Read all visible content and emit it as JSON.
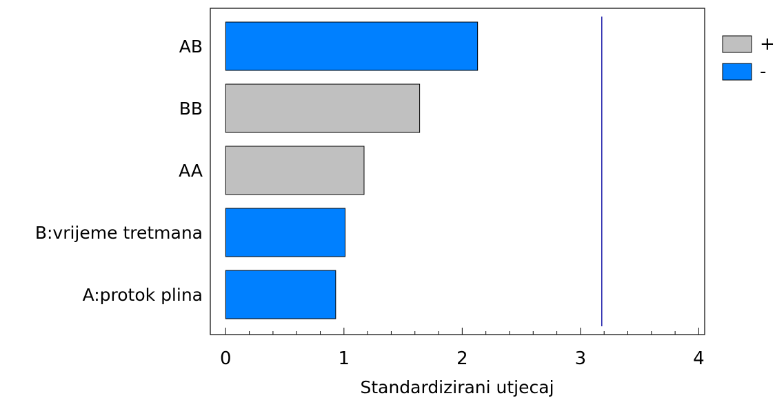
{
  "chart_data": {
    "type": "bar",
    "orientation": "horizontal",
    "categories": [
      "AB",
      "BB",
      "AA",
      "B:vrijeme tretmana",
      "A:protok plina"
    ],
    "values": [
      2.13,
      1.64,
      1.17,
      1.01,
      0.93
    ],
    "signs": [
      "-",
      "+",
      "+",
      "-",
      "-"
    ],
    "xlabel": "Standardizirani utjecaj",
    "ylabel": "",
    "xlim": [
      -0.13,
      4.05
    ],
    "xticks": [
      0,
      1,
      2,
      3,
      4
    ],
    "reference_line": 3.18,
    "legend": [
      {
        "label": "+",
        "color": "#c0c0c0"
      },
      {
        "label": "-",
        "color": "#0080ff"
      }
    ],
    "legend_position": "top-right",
    "colors": {
      "positive": "#c0c0c0",
      "negative": "#0080ff",
      "reference_line": "#1a1aa8",
      "frame": "#000000"
    }
  }
}
